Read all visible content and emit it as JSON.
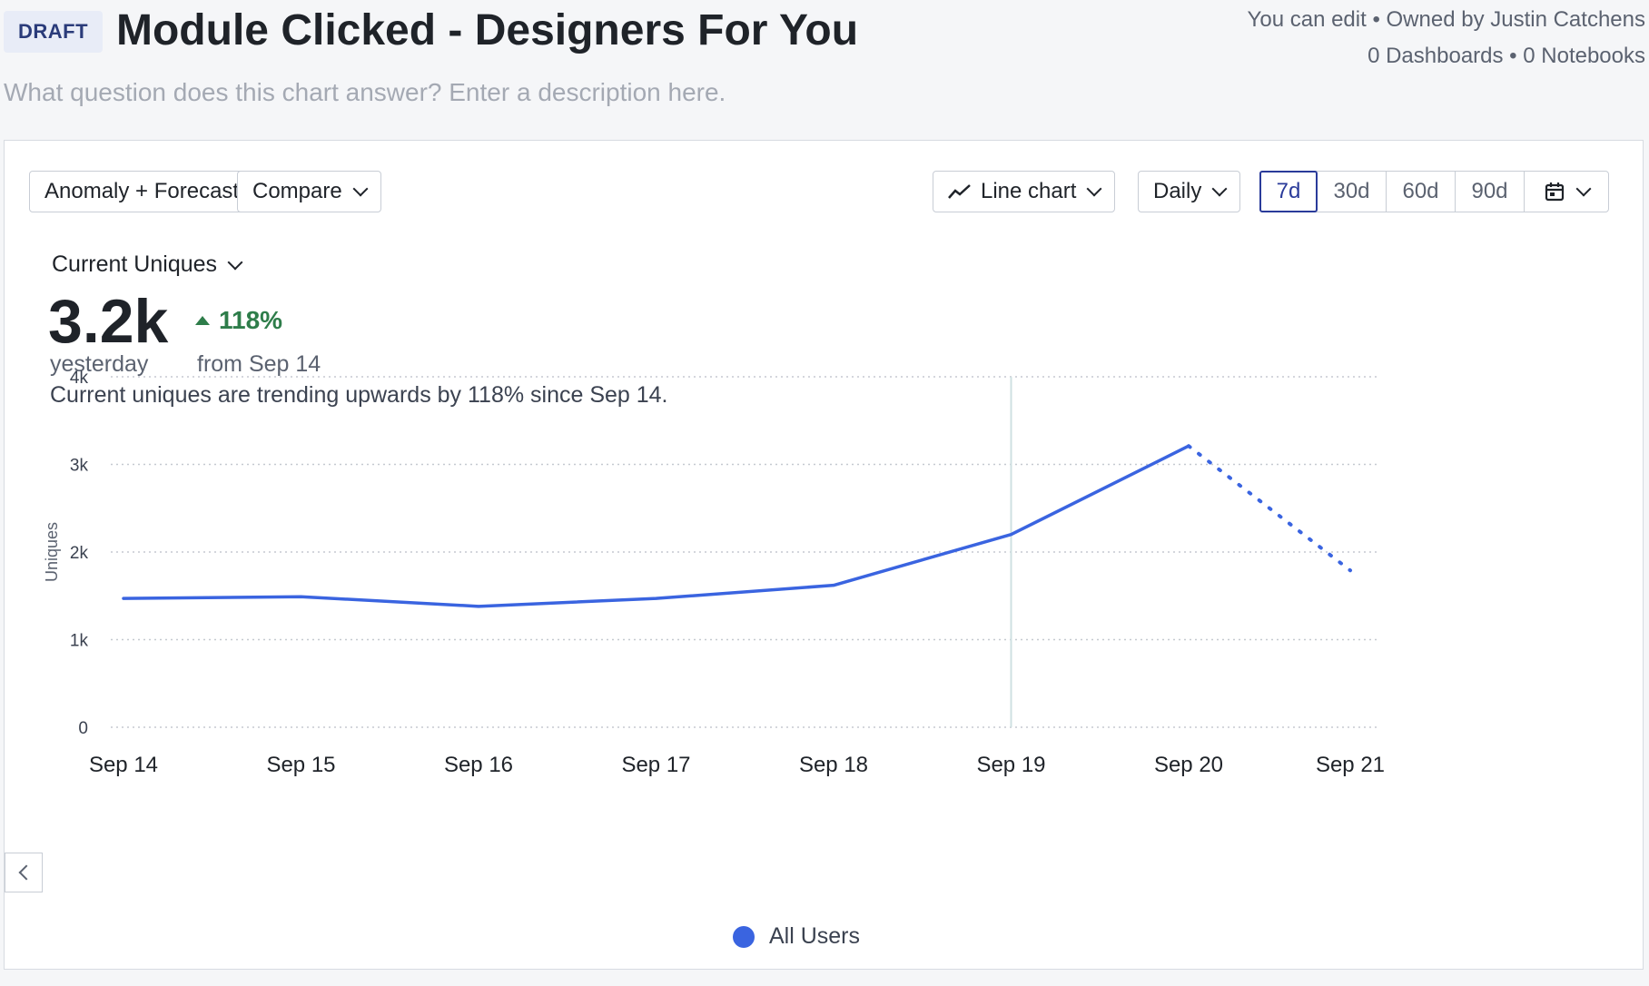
{
  "header": {
    "badge": "DRAFT",
    "title": "Module Clicked - Designers For You",
    "owner_line": "You can edit • Owned by Justin Catchens",
    "counts_line": "0 Dashboards • 0 Notebooks",
    "description_placeholder": "What question does this chart answer? Enter a description here."
  },
  "toolbar": {
    "anomaly_label": "Anomaly + Forecast",
    "compare_label": "Compare",
    "chart_type_label": "Line chart",
    "interval_label": "Daily",
    "ranges": [
      "7d",
      "30d",
      "60d",
      "90d"
    ],
    "active_range": "7d",
    "calendar_icon": "calendar-icon"
  },
  "metric": {
    "selector_label": "Current Uniques",
    "value": "3.2k",
    "value_caption": "yesterday",
    "change": "118%",
    "change_caption": "from Sep 14",
    "insight": "Current uniques are trending upwards by 118% since Sep 14."
  },
  "colors": {
    "series": "#3a64e0",
    "positive": "#2e7d4a",
    "accent": "#2a3b9a"
  },
  "chart_data": {
    "type": "line",
    "ylabel": "Uniques",
    "ylim": [
      0,
      4000
    ],
    "yticks": [
      0,
      1000,
      2000,
      3000,
      4000
    ],
    "ytick_labels": [
      "0",
      "1k",
      "2k",
      "3k",
      "4k"
    ],
    "categories": [
      "Sep 14",
      "Sep 15",
      "Sep 16",
      "Sep 17",
      "Sep 18",
      "Sep 19",
      "Sep 20",
      "Sep 21"
    ],
    "series": [
      {
        "name": "All Users",
        "values": [
          1470,
          1490,
          1380,
          1470,
          1620,
          2200,
          3210,
          1790
        ],
        "incomplete_from_index": 6
      }
    ],
    "marker_category": "Sep 19",
    "legend_position": "bottom"
  }
}
